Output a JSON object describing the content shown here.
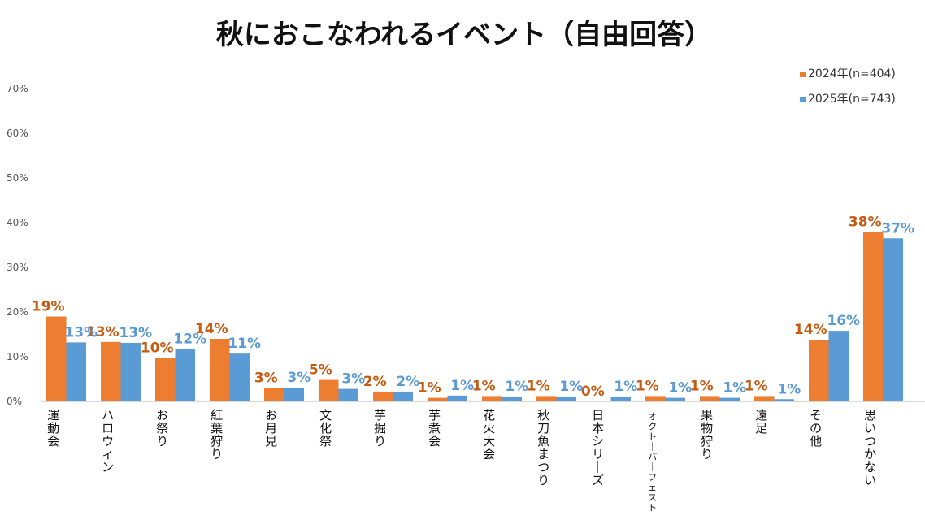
{
  "chart_data": {
    "type": "bar",
    "title": "秋におこなわれるイベント（自由回答）",
    "xlabel": "",
    "ylabel": "",
    "ylim": [
      0,
      70
    ],
    "yticks": [
      "0%",
      "10%",
      "20%",
      "30%",
      "40%",
      "50%",
      "60%",
      "70%"
    ],
    "legend_position": "top-right",
    "grid": false,
    "categories": [
      "運動会",
      "ハロウィン",
      "お祭り",
      "紅葉狩り",
      "お月見",
      "文化祭",
      "芋掘り",
      "芋煮会",
      "花火大会",
      "秋刀魚まつり",
      "日本シリーズ",
      "オクトーバーフェスト",
      "果物狩り",
      "遠足",
      "その他",
      "思いつかない"
    ],
    "series": [
      {
        "name": "2024年(n=404)",
        "color": "#ed7d31",
        "label_color": "#c55a11",
        "values": [
          19,
          13.3,
          9.7,
          14,
          3,
          4.8,
          2.2,
          0.8,
          1.2,
          1.2,
          0,
          1.2,
          1.2,
          1.2,
          13.8,
          37.9
        ],
        "labels": [
          "19%",
          "13%",
          "10%",
          "14%",
          "3%",
          "5%",
          "2%",
          "1%",
          "1%",
          "1%",
          "0%",
          "1%",
          "1%",
          "1%",
          "14%",
          "38%"
        ]
      },
      {
        "name": "2025年(n=743)",
        "color": "#5b9bd5",
        "label_color": "#5b9bd5",
        "values": [
          13.2,
          13.1,
          11.7,
          10.7,
          3.1,
          2.8,
          2.2,
          1.3,
          1.1,
          1.1,
          1.1,
          0.8,
          0.8,
          0.5,
          15.8,
          36.5
        ],
        "labels": [
          "13%",
          "13%",
          "12%",
          "11%",
          "3%",
          "3%",
          "2%",
          "1%",
          "1%",
          "1%",
          "1%",
          "1%",
          "1%",
          "1%",
          "16%",
          "37%"
        ]
      }
    ]
  }
}
